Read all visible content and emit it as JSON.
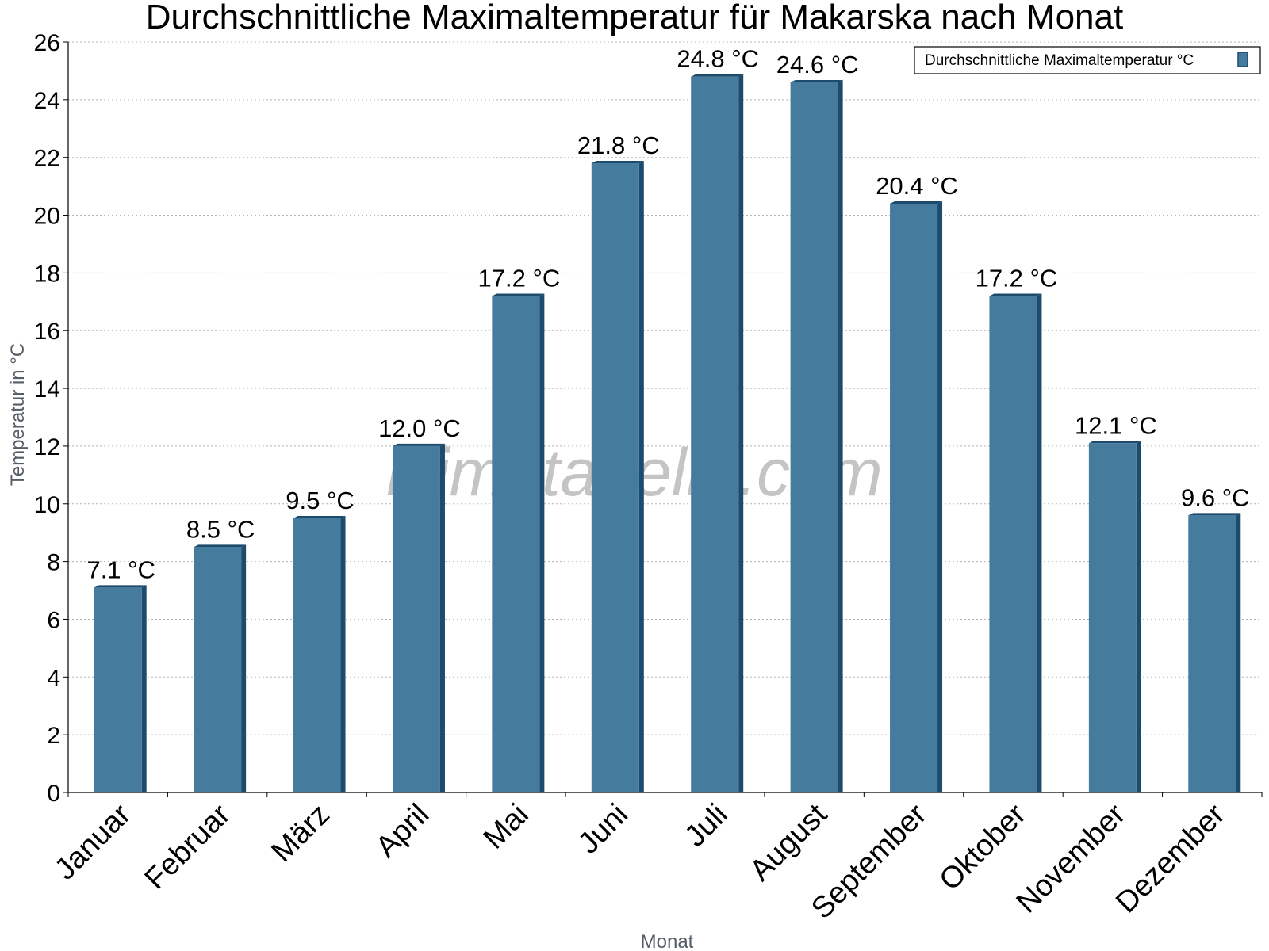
{
  "chart_data": {
    "type": "bar",
    "title": "Durchschnittliche Maximaltemperatur für Makarska nach Monat",
    "xlabel": "Monat",
    "ylabel": "Temperatur in °C",
    "ylim": [
      0,
      26
    ],
    "yticks": [
      0,
      2,
      4,
      6,
      8,
      10,
      12,
      14,
      16,
      18,
      20,
      22,
      24,
      26
    ],
    "grid": true,
    "legend_position": "top-right",
    "categories": [
      "Januar",
      "Februar",
      "März",
      "April",
      "Mai",
      "Juni",
      "Juli",
      "August",
      "September",
      "Oktober",
      "November",
      "Dezember"
    ],
    "series": [
      {
        "name": "Durchschnittliche Maximaltemperatur °C",
        "values": [
          7.1,
          8.5,
          9.5,
          12.0,
          17.2,
          21.8,
          24.8,
          24.6,
          20.4,
          17.2,
          12.1,
          9.6
        ],
        "labels": [
          "7.1 °C",
          "8.5 °C",
          "9.5 °C",
          "12.0 °C",
          "17.2 °C",
          "21.8 °C",
          "24.8 °C",
          "24.6 °C",
          "20.4 °C",
          "17.2 °C",
          "12.1 °C",
          "9.6 °C"
        ],
        "color": "#457b9d",
        "edge_color": "#1d4b6b"
      }
    ],
    "watermark": "klimatabelle.com"
  }
}
